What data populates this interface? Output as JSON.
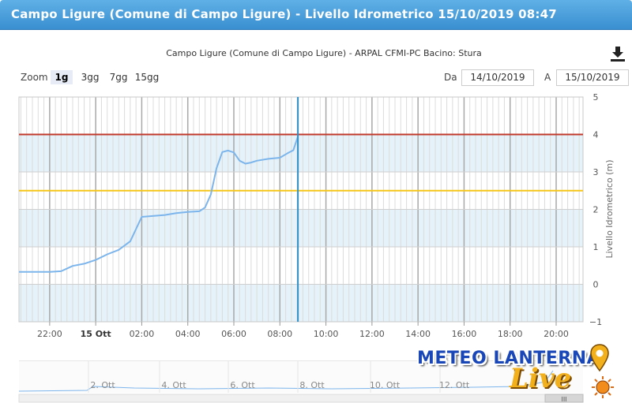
{
  "window": {
    "title": "Campo Ligure (Comune di Campo Ligure) - Livello Idrometrico 15/10/2019 08:47"
  },
  "toolbar": {
    "zoom_label": "Zoom",
    "zoom_options": [
      "1g",
      "3gg",
      "7gg",
      "15gg"
    ],
    "zoom_selected": "1g",
    "from_label": "Da",
    "from_value": "14/10/2019",
    "to_label": "A",
    "to_value": "15/10/2019",
    "download_icon": "download-icon"
  },
  "logo": {
    "text_main": "METEO LANTERNA",
    "text_live": "Live",
    "accent_blue": "#1a47b8",
    "accent_yellow": "#f2b01c"
  },
  "navigator": {
    "labels": [
      "2. Ott",
      "4. Ott",
      "6. Ott",
      "8. Ott",
      "10. Ott",
      "12. Ott"
    ],
    "scroll_glyph": "III"
  },
  "colors": {
    "series": "#7cb5ec",
    "threshold_red": "#c0392b",
    "threshold_yellow": "#f5c518",
    "band": "#e5f2f9",
    "now_line": "#2f8fc7"
  },
  "chart_data": {
    "type": "line",
    "title": "Campo Ligure (Comune di Campo Ligure) - ARPAL CFMI-PC Bacino: Stura",
    "ylabel": "Livello Idrometrico (m)",
    "xlabel": "",
    "ylim": [
      -1,
      5
    ],
    "yticks": [
      -1,
      0,
      1,
      2,
      3,
      4,
      5
    ],
    "xlim": [
      "14/10/2019 20:40",
      "15/10/2019 21:10"
    ],
    "xticks": [
      {
        "t": "14/10/2019 22:00",
        "label": "22:00",
        "bold": false
      },
      {
        "t": "15/10/2019 00:00",
        "label": "15 Ott",
        "bold": true
      },
      {
        "t": "15/10/2019 02:00",
        "label": "02:00",
        "bold": false
      },
      {
        "t": "15/10/2019 04:00",
        "label": "04:00",
        "bold": false
      },
      {
        "t": "15/10/2019 06:00",
        "label": "06:00",
        "bold": false
      },
      {
        "t": "15/10/2019 08:00",
        "label": "08:00",
        "bold": false
      },
      {
        "t": "15/10/2019 10:00",
        "label": "10:00",
        "bold": false
      },
      {
        "t": "15/10/2019 12:00",
        "label": "12:00",
        "bold": false
      },
      {
        "t": "15/10/2019 14:00",
        "label": "14:00",
        "bold": false
      },
      {
        "t": "15/10/2019 16:00",
        "label": "16:00",
        "bold": false
      },
      {
        "t": "15/10/2019 18:00",
        "label": "18:00",
        "bold": false
      },
      {
        "t": "15/10/2019 20:00",
        "label": "20:00",
        "bold": false
      }
    ],
    "thresholds": [
      4.0,
      2.5
    ],
    "bands": [
      [
        3,
        4
      ],
      [
        1,
        2
      ],
      [
        -1,
        0
      ]
    ],
    "current_time": "15/10/2019 08:47",
    "grid": true,
    "series": [
      {
        "x": [
          "14/10/2019 20:40",
          "14/10/2019 22:00",
          "14/10/2019 22:30",
          "14/10/2019 23:00",
          "14/10/2019 23:30",
          "15/10/2019 00:00",
          "15/10/2019 00:30",
          "15/10/2019 01:00",
          "15/10/2019 01:30",
          "15/10/2019 02:00",
          "15/10/2019 03:00",
          "15/10/2019 03:30",
          "15/10/2019 04:00",
          "15/10/2019 04:30",
          "15/10/2019 04:45",
          "15/10/2019 05:00",
          "15/10/2019 05:15",
          "15/10/2019 05:30",
          "15/10/2019 05:45",
          "15/10/2019 06:00",
          "15/10/2019 06:15",
          "15/10/2019 06:30",
          "15/10/2019 06:45",
          "15/10/2019 07:00",
          "15/10/2019 07:30",
          "15/10/2019 08:00",
          "15/10/2019 08:20",
          "15/10/2019 08:35",
          "15/10/2019 08:47"
        ],
        "values": [
          0.33,
          0.33,
          0.35,
          0.49,
          0.55,
          0.65,
          0.8,
          0.92,
          1.15,
          1.8,
          1.85,
          1.9,
          1.93,
          1.95,
          2.05,
          2.4,
          3.1,
          3.53,
          3.57,
          3.52,
          3.3,
          3.22,
          3.25,
          3.3,
          3.35,
          3.38,
          3.5,
          3.58,
          3.95
        ]
      }
    ]
  }
}
